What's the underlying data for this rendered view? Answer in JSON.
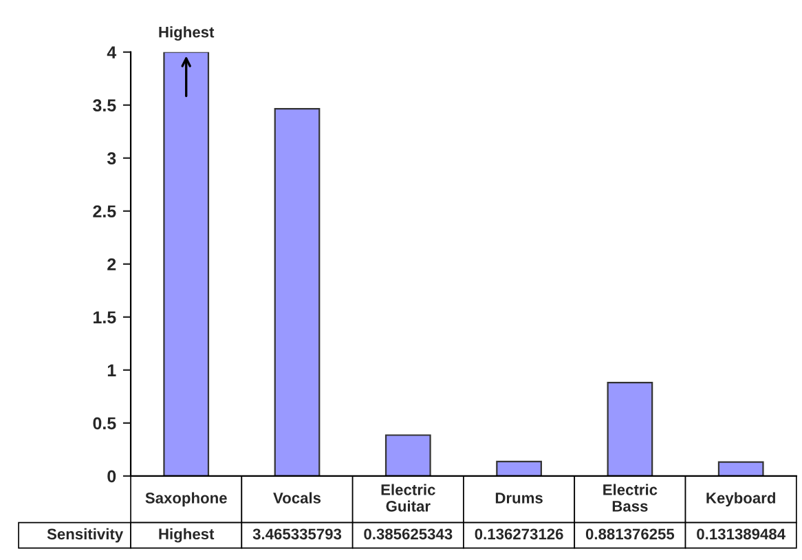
{
  "chart_data": {
    "type": "bar",
    "categories": [
      "Saxophone",
      "Vocals",
      "Electric Guitar",
      "Drums",
      "Electric Bass",
      "Keyboard"
    ],
    "series": [
      {
        "name": "Sensitivity",
        "color": "#9999ff",
        "values": [
          4,
          3.465335793,
          0.385625343,
          0.136273126,
          0.881376255,
          0.131389484
        ],
        "value_labels": [
          "Highest",
          "3.465335793",
          "0.385625343",
          "0.136273126",
          "0.881376255",
          "0.131389484"
        ]
      }
    ],
    "ylim": [
      0,
      4
    ],
    "yticks": [
      0,
      0.5,
      1,
      1.5,
      2,
      2.5,
      3,
      3.5,
      4
    ],
    "annotations": [
      {
        "text": "Highest",
        "x": "Saxophone",
        "y": 4
      }
    ],
    "legend": "bottom left",
    "grid": false
  }
}
